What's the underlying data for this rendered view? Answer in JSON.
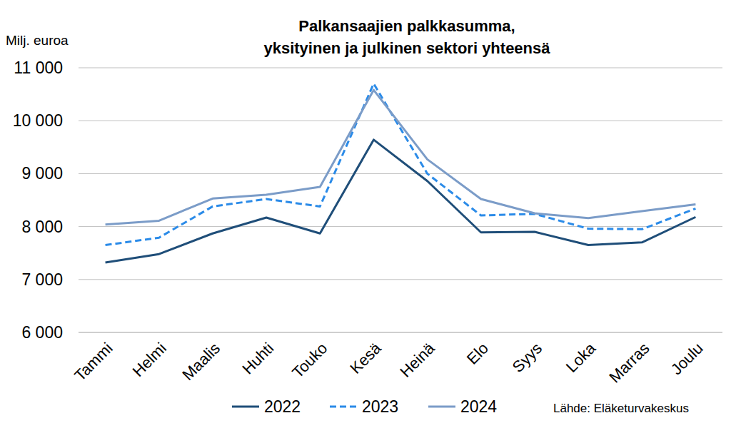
{
  "chart_data": {
    "type": "line",
    "title": "Palkansaajien palkkasumma,\nyksityinen ja julkinen sektori yhteensä",
    "ylabel": "Milj. euroa",
    "source": "Lähde: Eläketurvakeskus",
    "categories": [
      "Tammi",
      "Helmi",
      "Maalis",
      "Huhti",
      "Touko",
      "Kesä",
      "Heinä",
      "Elo",
      "Syys",
      "Loka",
      "Marras",
      "Joulu"
    ],
    "series": [
      {
        "name": "2022",
        "color": "#1f4e79",
        "line_style": "solid",
        "marker": "none",
        "values": [
          7320,
          7480,
          7870,
          8170,
          7870,
          9640,
          8860,
          7890,
          7900,
          7650,
          7700,
          8180
        ]
      },
      {
        "name": "2023",
        "color": "#2b8be8",
        "line_style": "dashed",
        "marker": "none",
        "values": [
          7650,
          7790,
          8380,
          8520,
          8380,
          10700,
          9000,
          8210,
          8240,
          7960,
          7950,
          8340
        ]
      },
      {
        "name": "2024",
        "color": "#7b9cc8",
        "line_style": "solid",
        "marker": "none",
        "values": [
          8040,
          8110,
          8530,
          8600,
          8750,
          10580,
          9270,
          8520,
          8250,
          8160,
          8290,
          8420
        ]
      }
    ],
    "ylim": [
      6000,
      11000
    ],
    "yticks": [
      {
        "value": 6000,
        "label": "6 000"
      },
      {
        "value": 7000,
        "label": "7 000"
      },
      {
        "value": 8000,
        "label": "8 000"
      },
      {
        "value": 9000,
        "label": "9 000"
      },
      {
        "value": 10000,
        "label": "10 000"
      },
      {
        "value": 11000,
        "label": "11 000"
      }
    ],
    "grid": true,
    "legend": "bottom"
  }
}
